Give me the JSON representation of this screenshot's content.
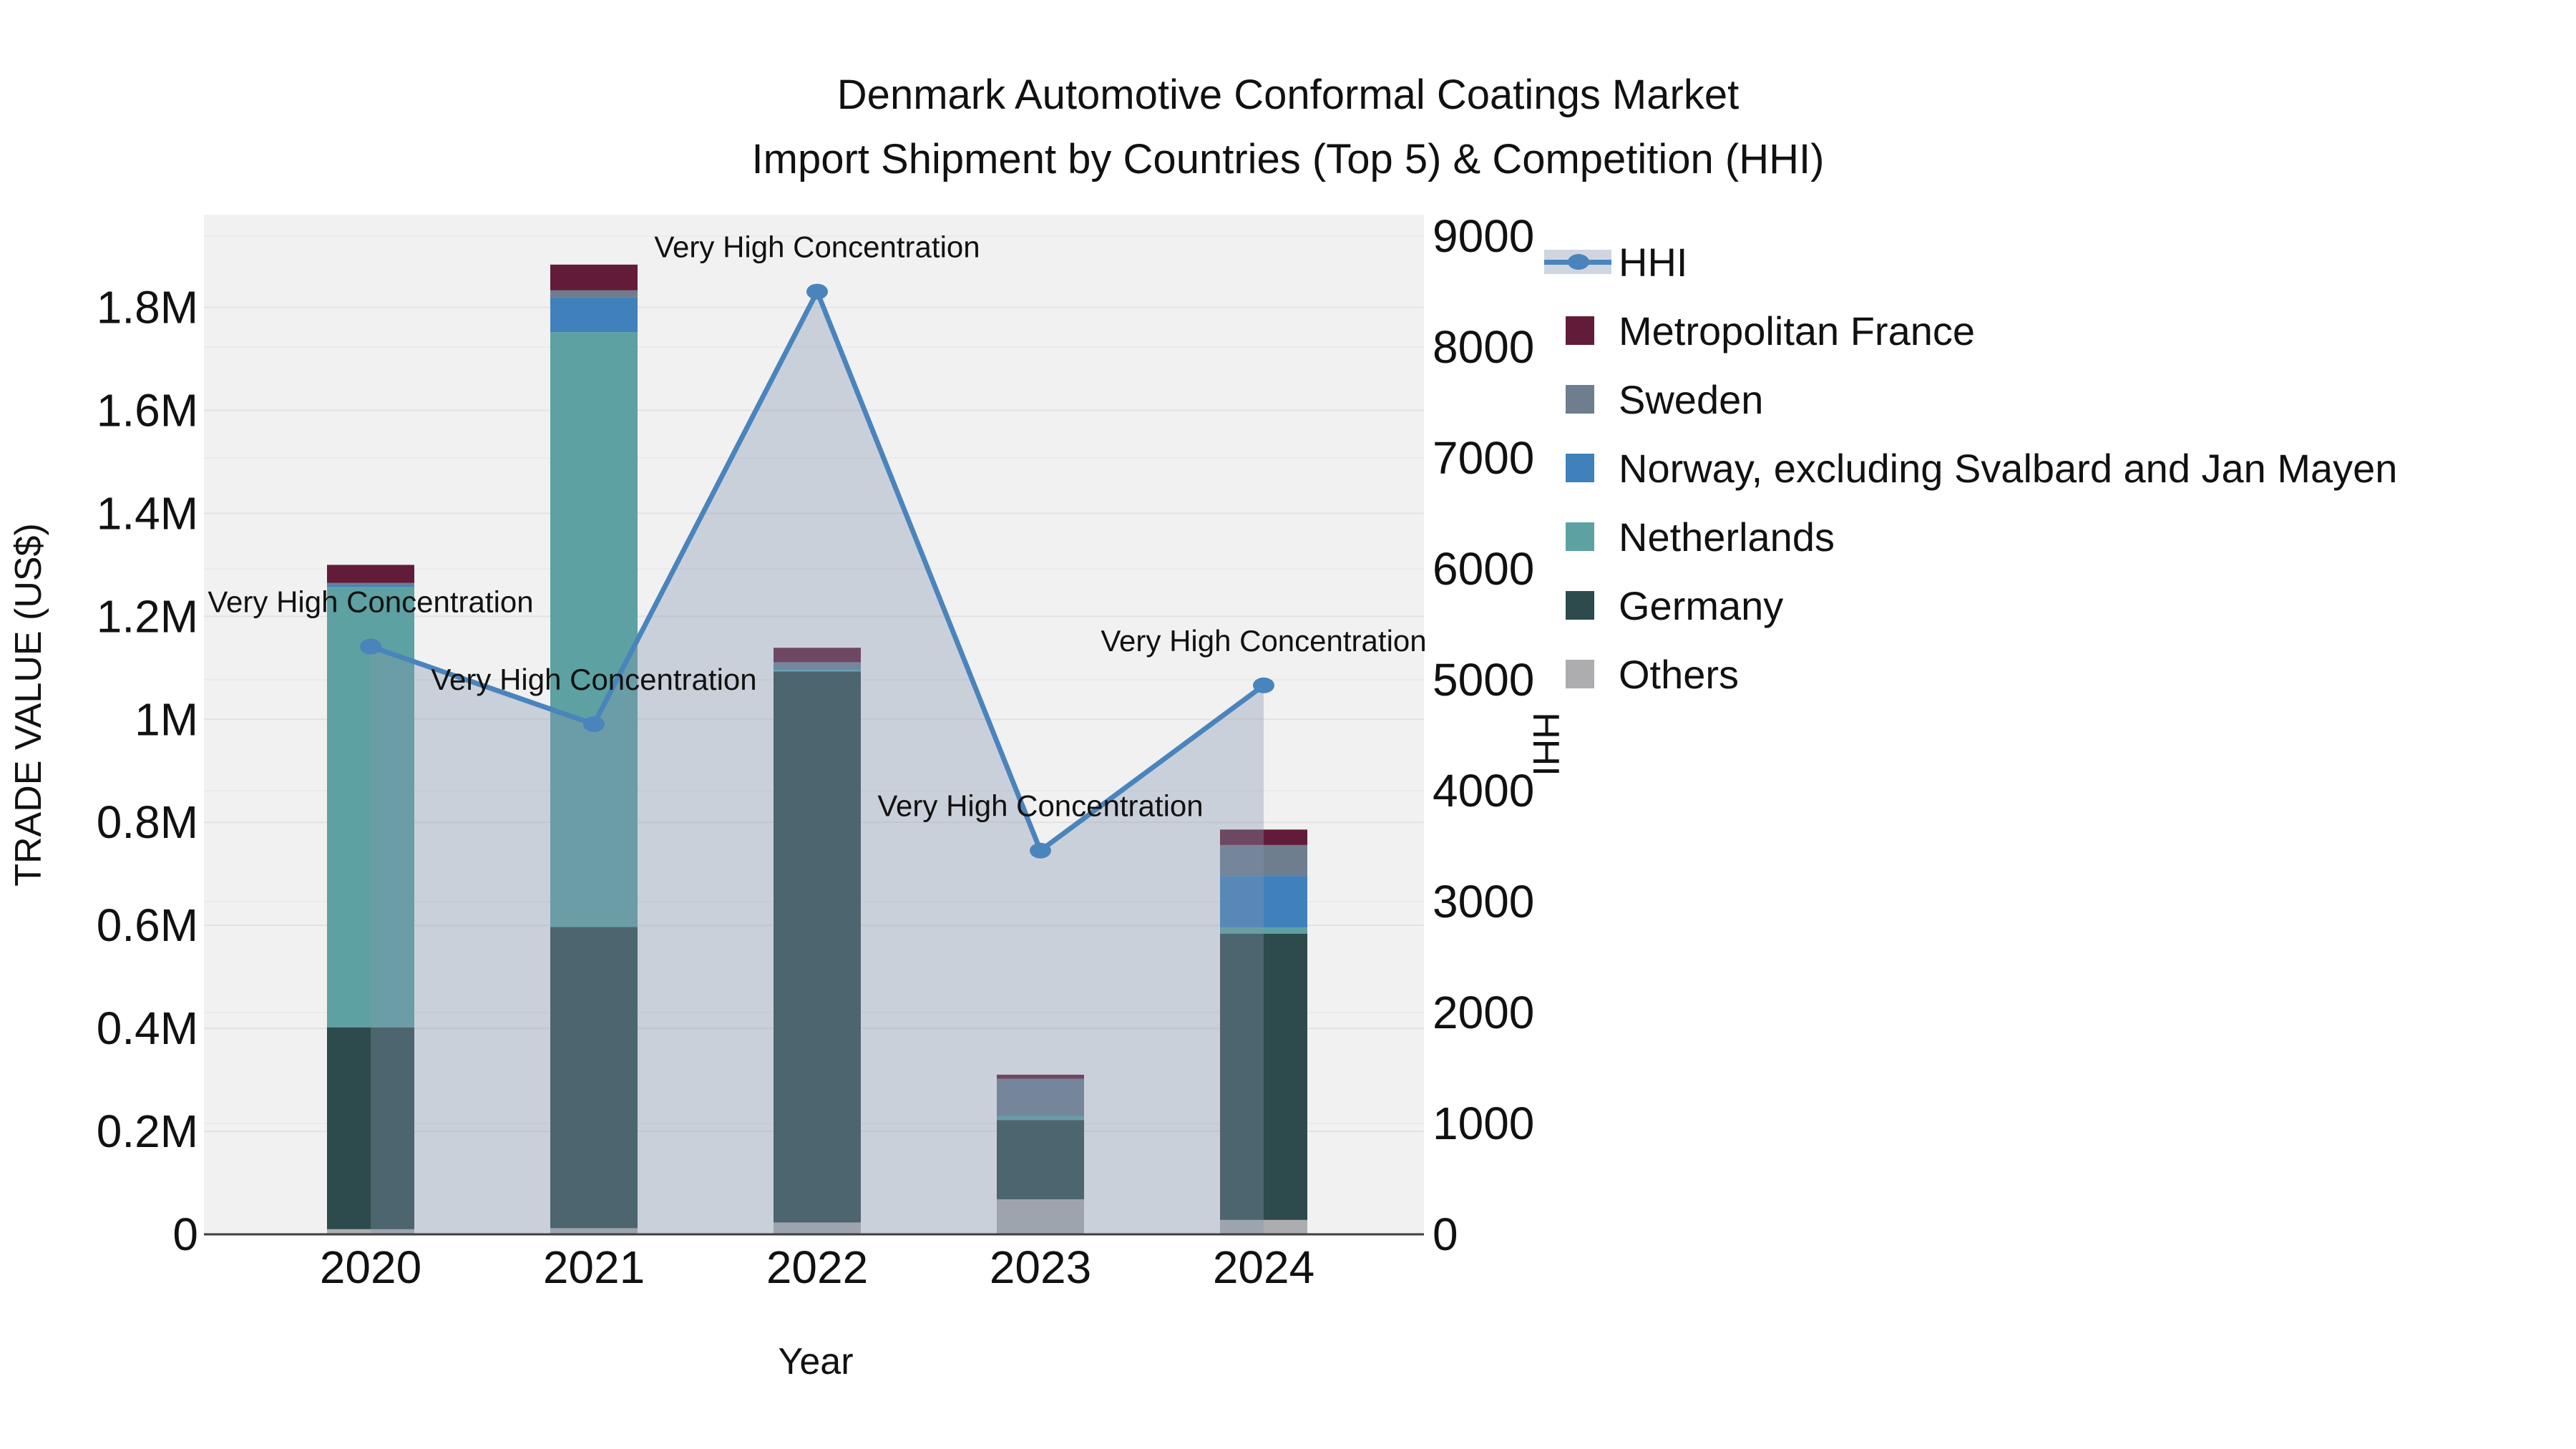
{
  "title": {
    "line1": "Denmark Automotive Conformal Coatings Market",
    "line2": "Import Shipment by Countries (Top 5) & Competition (HHI)"
  },
  "axes": {
    "x": {
      "label": "Year",
      "ticks": [
        "2020",
        "2021",
        "2022",
        "2023",
        "2024"
      ]
    },
    "y_left": {
      "label": "TRADE VALUE (US$)",
      "ticks": [
        {
          "label": "0",
          "value": 0
        },
        {
          "label": "0.2M",
          "value": 0.2
        },
        {
          "label": "0.4M",
          "value": 0.4
        },
        {
          "label": "0.6M",
          "value": 0.6
        },
        {
          "label": "0.8M",
          "value": 0.8
        },
        {
          "label": "1M",
          "value": 1.0
        },
        {
          "label": "1.2M",
          "value": 1.2
        },
        {
          "label": "1.4M",
          "value": 1.4
        },
        {
          "label": "1.6M",
          "value": 1.6
        },
        {
          "label": "1.8M",
          "value": 1.8
        }
      ]
    },
    "y_right": {
      "label": "HHI",
      "ticks": [
        {
          "label": "0",
          "value": 0
        },
        {
          "label": "1000",
          "value": 1000
        },
        {
          "label": "2000",
          "value": 2000
        },
        {
          "label": "3000",
          "value": 3000
        },
        {
          "label": "4000",
          "value": 4000
        },
        {
          "label": "5000",
          "value": 5000
        },
        {
          "label": "6000",
          "value": 6000
        },
        {
          "label": "7000",
          "value": 7000
        },
        {
          "label": "8000",
          "value": 8000
        },
        {
          "label": "9000",
          "value": 9000
        }
      ]
    }
  },
  "legend": {
    "items": [
      {
        "label": "HHI",
        "type": "line",
        "color": "#4a84bd",
        "band_color": "#cfd6e0"
      },
      {
        "label": "Metropolitan France",
        "type": "swatch",
        "color": "#621c39"
      },
      {
        "label": "Sweden",
        "type": "swatch",
        "color": "#6e7e8f"
      },
      {
        "label": "Norway, excluding Svalbard and Jan Mayen",
        "type": "swatch",
        "color": "#4181bb"
      },
      {
        "label": "Netherlands",
        "type": "swatch",
        "color": "#5da1a2"
      },
      {
        "label": "Germany",
        "type": "swatch",
        "color": "#2d4a4c"
      },
      {
        "label": "Others",
        "type": "swatch",
        "color": "#adacae"
      }
    ]
  },
  "chart_data": {
    "type": "bar+line",
    "unit": "Million US$ (trade value, left axis); HHI index (right axis)",
    "categories": [
      "2020",
      "2021",
      "2022",
      "2023",
      "2024"
    ],
    "stack_order_note": "series listed bottom-to-top of stack",
    "series": [
      {
        "name": "Others",
        "color": "#adacae",
        "values": [
          0.01,
          0.012,
          0.023,
          0.068,
          0.028
        ]
      },
      {
        "name": "Germany",
        "color": "#2d4a4c",
        "values": [
          0.392,
          0.585,
          1.07,
          0.154,
          0.556
        ]
      },
      {
        "name": "Netherlands",
        "color": "#5da1a2",
        "values": [
          0.855,
          1.155,
          0.004,
          0.008,
          0.012
        ]
      },
      {
        "name": "Norway, excluding Svalbard and Jan Mayen",
        "color": "#4181bb",
        "values": [
          0.004,
          0.068,
          0.002,
          0.002,
          0.1
        ]
      },
      {
        "name": "Sweden",
        "color": "#6e7e8f",
        "values": [
          0.004,
          0.013,
          0.012,
          0.07,
          0.06
        ]
      },
      {
        "name": "Metropolitan France",
        "color": "#621c39",
        "values": [
          0.035,
          0.05,
          0.028,
          0.008,
          0.03
        ]
      }
    ],
    "bar_totals": [
      1.3,
      1.883,
      1.139,
      0.31,
      0.786
    ],
    "hhi": {
      "name": "HHI",
      "color": "#4a84bd",
      "fill_color": "rgba(133,150,176,0.36)",
      "values": [
        5300,
        4600,
        8500,
        3460,
        4950
      ]
    },
    "annotations": [
      {
        "text": "Very High Concentration",
        "x_index": 0
      },
      {
        "text": "Very High Concentration",
        "x_index": 1
      },
      {
        "text": "Very High Concentration",
        "x_index": 2
      },
      {
        "text": "Very High Concentration",
        "x_index": 3
      },
      {
        "text": "Very High Concentration",
        "x_index": 4
      }
    ],
    "ylim_left": [
      0,
      1.98
    ],
    "ylim_right": [
      0,
      9194
    ],
    "legend_position": "right",
    "grid": true
  }
}
